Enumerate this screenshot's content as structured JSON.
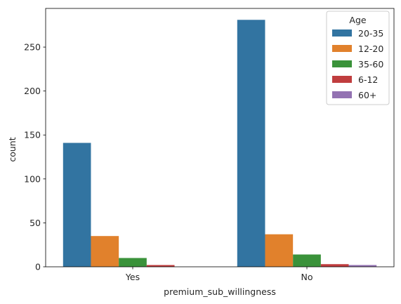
{
  "chart_data": {
    "type": "bar",
    "categories": [
      "Yes",
      "No"
    ],
    "xlabel": "premium_sub_willingness",
    "ylabel": "count",
    "ylim": [
      0,
      294
    ],
    "yticks": [
      0,
      50,
      100,
      150,
      200,
      250
    ],
    "legend": {
      "title": "Age",
      "placement": "top-right"
    },
    "series": [
      {
        "name": "20-35",
        "color": "#3274a1",
        "values": [
          141,
          281
        ]
      },
      {
        "name": "12-20",
        "color": "#e1812c",
        "values": [
          35,
          37
        ]
      },
      {
        "name": "35-60",
        "color": "#3a923a",
        "values": [
          10,
          14
        ]
      },
      {
        "name": "6-12",
        "color": "#c03d3e",
        "values": [
          2,
          3
        ]
      },
      {
        "name": "60+",
        "color": "#9372b2",
        "values": [
          0,
          2
        ]
      }
    ]
  }
}
